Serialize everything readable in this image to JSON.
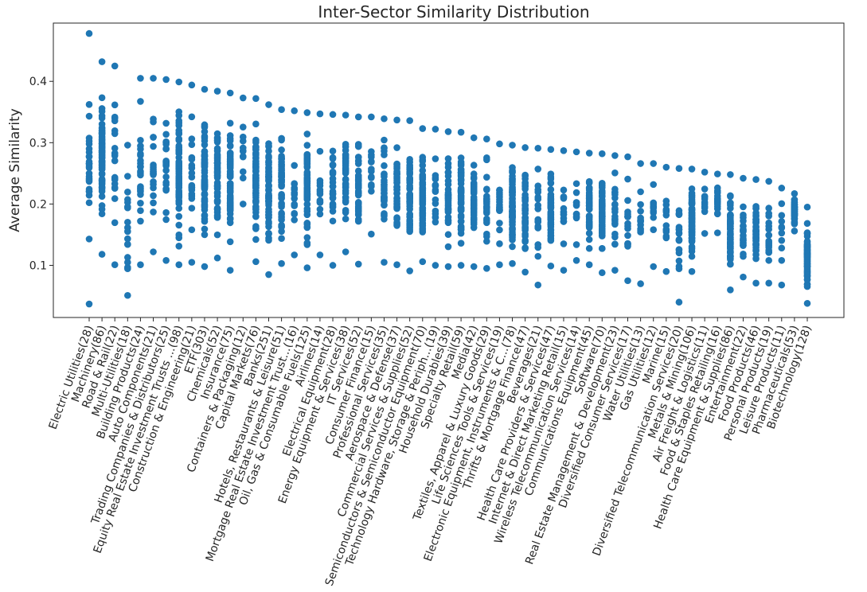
{
  "chart_data": {
    "type": "scatter",
    "title": "Inter-Sector Similarity Distribution",
    "xlabel": "",
    "ylabel": "Average Similarity",
    "ylim": [
      0.015,
      0.495
    ],
    "yticks": [
      0.1,
      0.2,
      0.3,
      0.4
    ],
    "grid": false,
    "point_color": "#1f77b4",
    "categories": [
      "Electric Utilities(28)",
      "Machinery(86)",
      "Road & Rail(22)",
      "Multi-Utilities(18)",
      "Building Products(24)",
      "Auto Components(21)",
      "Trading Companies & Distributors(25)",
      "Equity Real Estate Investment Trusts ...(98)",
      "Construction & Engineering(21)",
      "ETF(303)",
      "Chemicals(52)",
      "Insurance(75)",
      "Containers & Packaging(12)",
      "Capital Markets(76)",
      "Banks(251)",
      "Hotels, Restaurants & Leisure(51)",
      "Mortgage Real Estate Investment Trust...(16)",
      "Oil, Gas & Consumable Fuels(125)",
      "Airlines(14)",
      "Electrical Equipment(28)",
      "Energy Equipment & Services(38)",
      "IT Services(52)",
      "Consumer Finance(15)",
      "Professional Services(35)",
      "Aerospace & Defense(37)",
      "Commercial Services & Supplies(52)",
      "Semiconductors & Semiconductor Equipment(70)",
      "Technology Hardware, Storage & Periph...(19)",
      "Household Durables(39)",
      "Specialty Retail(59)",
      "Media(42)",
      "Textiles, Apparel & Luxury Goods(29)",
      "Life Sciences Tools & Services(19)",
      "Electronic Equipment, Instruments & C...(78)",
      "Thrifts & Mortgage Finance(47)",
      "Beverages(21)",
      "Health Care Providers & Services(47)",
      "Internet & Direct Marketing Retail(15)",
      "Wireless Telecommunication Services(14)",
      "Communications Equipment(45)",
      "Software(70)",
      "Real Estate Management & Development(23)",
      "Diversified Consumer Services(17)",
      "Water Utilities(13)",
      "Gas Utilities(12)",
      "Marine(15)",
      "Diversified Telecommunication Services(20)",
      "Metals & Mining(106)",
      "Air Freight & Logistics(11)",
      "Food & Staples Retailing(16)",
      "Health Care Equipment & Supplies(86)",
      "Entertainment(22)",
      "Food Products(46)",
      "Personal Products(19)",
      "Leisure Products(11)",
      "Pharmaceuticals(53)",
      "Biotechnology(128)"
    ],
    "ranges": [
      [
        0.037,
        0.478
      ],
      [
        0.118,
        0.432
      ],
      [
        0.101,
        0.425
      ],
      [
        0.051,
        0.296
      ],
      [
        0.101,
        0.405
      ],
      [
        0.122,
        0.405
      ],
      [
        0.108,
        0.403
      ],
      [
        0.101,
        0.399
      ],
      [
        0.105,
        0.394
      ],
      [
        0.098,
        0.387
      ],
      [
        0.112,
        0.384
      ],
      [
        0.092,
        0.381
      ],
      [
        0.2,
        0.373
      ],
      [
        0.106,
        0.372
      ],
      [
        0.085,
        0.362
      ],
      [
        0.103,
        0.354
      ],
      [
        0.117,
        0.352
      ],
      [
        0.096,
        0.349
      ],
      [
        0.117,
        0.347
      ],
      [
        0.1,
        0.346
      ],
      [
        0.122,
        0.345
      ],
      [
        0.102,
        0.342
      ],
      [
        0.151,
        0.342
      ],
      [
        0.105,
        0.339
      ],
      [
        0.101,
        0.337
      ],
      [
        0.091,
        0.336
      ],
      [
        0.106,
        0.323
      ],
      [
        0.1,
        0.322
      ],
      [
        0.098,
        0.318
      ],
      [
        0.1,
        0.317
      ],
      [
        0.098,
        0.308
      ],
      [
        0.095,
        0.306
      ],
      [
        0.101,
        0.298
      ],
      [
        0.103,
        0.296
      ],
      [
        0.089,
        0.292
      ],
      [
        0.068,
        0.291
      ],
      [
        0.099,
        0.289
      ],
      [
        0.092,
        0.287
      ],
      [
        0.108,
        0.285
      ],
      [
        0.101,
        0.283
      ],
      [
        0.088,
        0.282
      ],
      [
        0.092,
        0.279
      ],
      [
        0.075,
        0.277
      ],
      [
        0.07,
        0.266
      ],
      [
        0.098,
        0.266
      ],
      [
        0.09,
        0.26
      ],
      [
        0.04,
        0.258
      ],
      [
        0.09,
        0.257
      ],
      [
        0.152,
        0.252
      ],
      [
        0.153,
        0.249
      ],
      [
        0.06,
        0.248
      ],
      [
        0.081,
        0.242
      ],
      [
        0.071,
        0.24
      ],
      [
        0.071,
        0.237
      ],
      [
        0.068,
        0.226
      ],
      [
        0.156,
        0.217
      ],
      [
        0.038,
        0.195
      ]
    ]
  }
}
